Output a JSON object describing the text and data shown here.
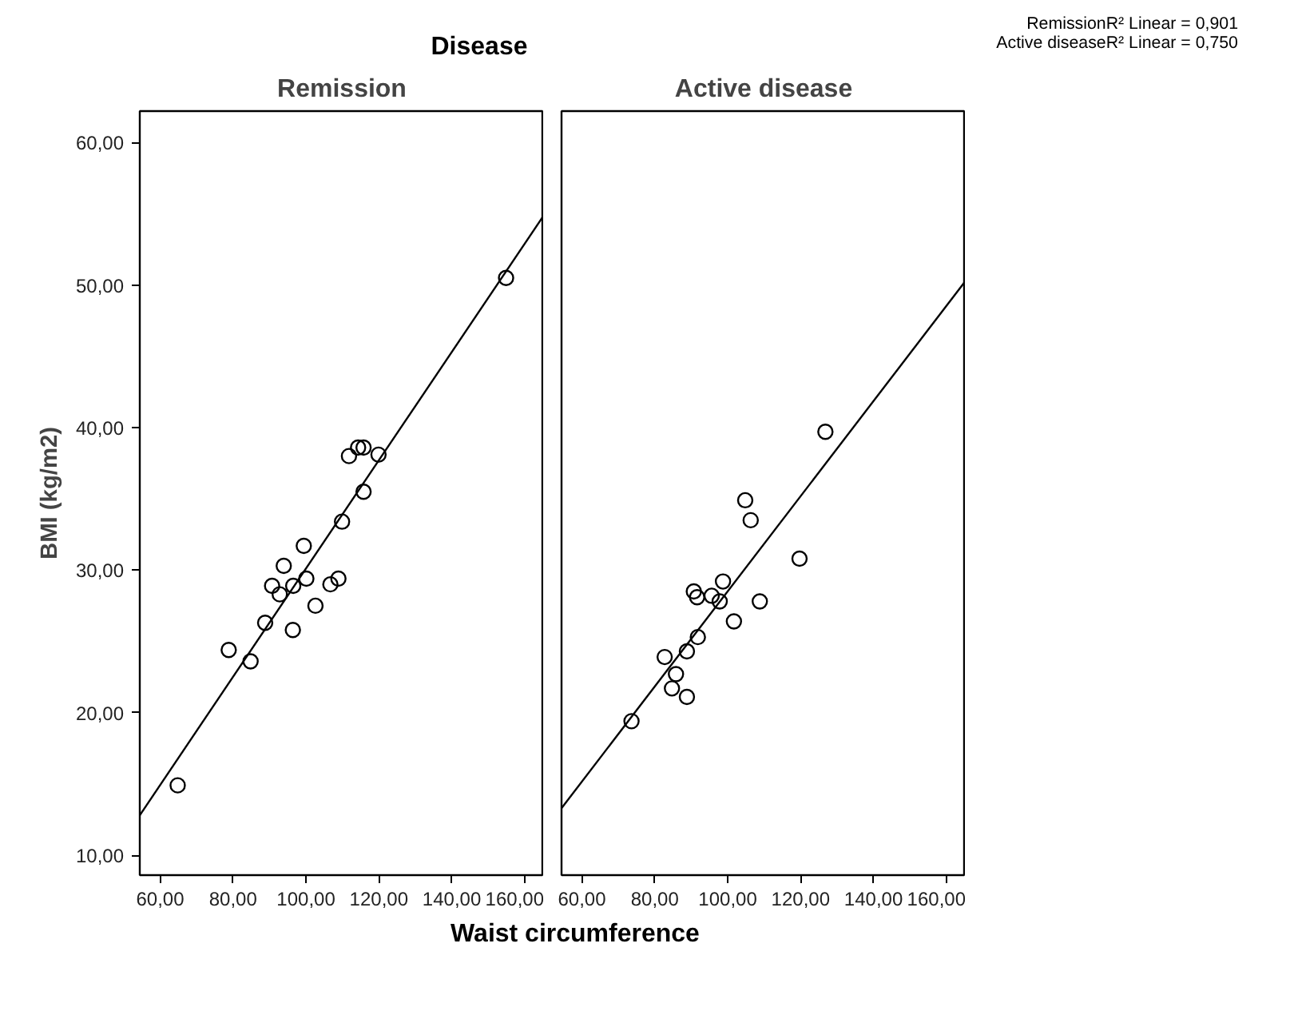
{
  "chart_data": [
    {
      "type": "scatter",
      "title": "Remission",
      "xlabel": "Waist circumference",
      "ylabel": "BMI (kg/m2)",
      "annotations": [
        "Disease",
        "RemissionR² Linear = 0,901",
        "Active diseaseR² Linear = 0,750"
      ],
      "xlim": [
        54.4,
        165.3
      ],
      "ylim": [
        8.6,
        62.2
      ],
      "xticks": [
        {
          "value": 60,
          "label": "60,00"
        },
        {
          "value": 80,
          "label": "80,00"
        },
        {
          "value": 100,
          "label": "100,00"
        },
        {
          "value": 120,
          "label": "120,00"
        },
        {
          "value": 140,
          "label": "140,00"
        },
        {
          "value": 160,
          "label": "160,00"
        }
      ],
      "yticks": [
        {
          "value": 10,
          "label": "10,00"
        },
        {
          "value": 20,
          "label": "20,00"
        },
        {
          "value": 30,
          "label": "30,00"
        },
        {
          "value": 40,
          "label": "40,00"
        },
        {
          "value": 50,
          "label": "50,00"
        },
        {
          "value": 60,
          "label": "60,00"
        }
      ],
      "series": [
        {
          "marker": "circle",
          "color": "#000000",
          "x": [
            154.9,
            111.8,
            114.3,
            115.8,
            119.9,
            115.8,
            109.9,
            99.4,
            93.9,
            100.1,
            90.7,
            92.8,
            96.5,
            106.7,
            108.9,
            102.6,
            88.8,
            96.4,
            78.8,
            84.8,
            64.8
          ],
          "values": [
            50.5,
            38.0,
            38.6,
            38.6,
            38.1,
            35.5,
            33.4,
            31.7,
            30.3,
            29.4,
            28.9,
            28.3,
            28.9,
            29.0,
            29.4,
            27.5,
            26.3,
            25.8,
            24.4,
            23.6,
            14.9
          ]
        },
        {
          "type": "line",
          "marker": "none",
          "color": "#000000",
          "x": [
            54.4,
            165.3
          ],
          "values": [
            12.8,
            54.9
          ]
        }
      ]
    },
    {
      "type": "scatter",
      "title": "Active disease",
      "tick_labels": "x",
      "xlim": [
        54.4,
        165.3
      ],
      "ylim": [
        8.6,
        62.2
      ],
      "xticks": [
        {
          "value": 60,
          "label": "60,00"
        },
        {
          "value": 80,
          "label": "80,00"
        },
        {
          "value": 100,
          "label": "100,00"
        },
        {
          "value": 120,
          "label": "120,00"
        },
        {
          "value": 140,
          "label": "140,00"
        },
        {
          "value": 160,
          "label": "160,00"
        }
      ],
      "series": [
        {
          "marker": "circle",
          "color": "#000000",
          "x": [
            126.8,
            104.8,
            106.3,
            119.7,
            98.7,
            90.7,
            91.6,
            95.6,
            97.8,
            108.8,
            101.7,
            91.8,
            88.8,
            82.7,
            85.8,
            84.7,
            88.8,
            73.6
          ],
          "values": [
            39.7,
            34.9,
            33.5,
            30.8,
            29.2,
            28.5,
            28.1,
            28.2,
            27.8,
            27.8,
            26.4,
            25.3,
            24.3,
            23.9,
            22.7,
            21.7,
            21.1,
            19.4
          ]
        },
        {
          "type": "line",
          "marker": "none",
          "color": "#000000",
          "x": [
            54.4,
            165.3
          ],
          "values": [
            13.3,
            50.3
          ]
        }
      ]
    }
  ]
}
